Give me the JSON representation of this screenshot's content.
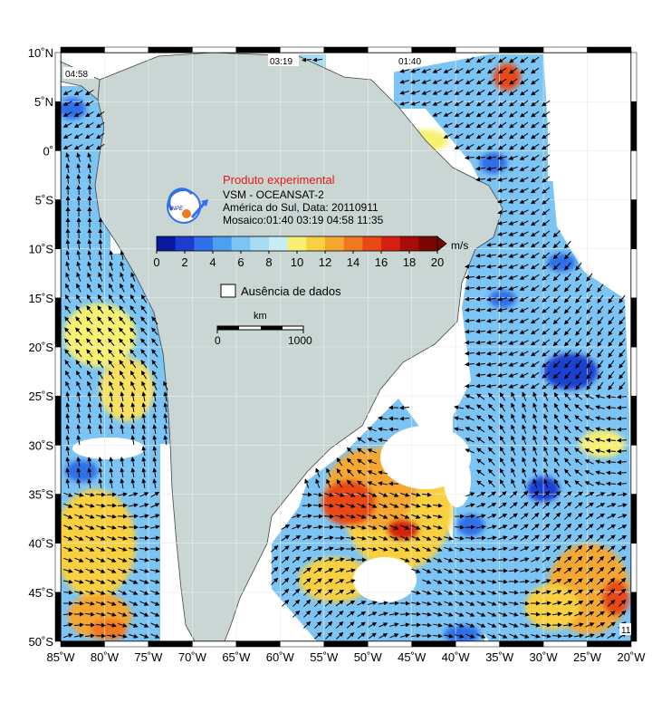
{
  "map": {
    "lon_range": [
      -85,
      -20
    ],
    "lat_range": [
      -50,
      10
    ],
    "lon_ticks": [
      "85˚W",
      "80˚W",
      "75˚W",
      "70˚W",
      "65˚W",
      "60˚W",
      "55˚W",
      "50˚W",
      "45˚W",
      "40˚W",
      "35˚W",
      "30˚W",
      "25˚W",
      "20˚W"
    ],
    "lat_ticks": [
      "10˚N",
      "5˚N",
      "0˚",
      "5˚S",
      "10˚S",
      "15˚S",
      "20˚S",
      "25˚S",
      "30˚S",
      "35˚S",
      "40˚S",
      "45˚S",
      "50˚S"
    ],
    "pass_labels": [
      "04:58",
      "03:19",
      "01:40"
    ],
    "corner_label": "11",
    "colors": {
      "land": "#c9d6d4",
      "nodata": "#ffffff",
      "coast": "#444444"
    }
  },
  "legend": {
    "title": "Produto experimental",
    "line1": "VSM - OCEANSAT-2",
    "line2": "América do Sul, Data: 20110911",
    "line3": "Mosaico:01:40 03:19 04:58 11:35",
    "logo_text": "INPE",
    "colorbar": {
      "unit": "m/s",
      "ticks": [
        "0",
        "2",
        "4",
        "6",
        "8",
        "10",
        "12",
        "14",
        "16",
        "18",
        "20"
      ],
      "colors": [
        "#0a1aa0",
        "#1a3fd0",
        "#2f6fe8",
        "#4d9ff0",
        "#7cc4f4",
        "#a6dcf4",
        "#c7ecf4",
        "#f8f070",
        "#f8d040",
        "#f4a830",
        "#f07820",
        "#e84818",
        "#d42010",
        "#a80c08",
        "#7a0604"
      ]
    },
    "nodata_label": "Ausência de dados",
    "scale": {
      "unit": "km",
      "start": "0",
      "end": "1000"
    }
  }
}
